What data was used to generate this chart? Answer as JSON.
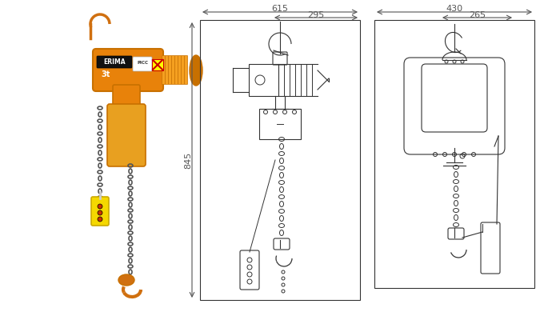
{
  "bg_color": "#ffffff",
  "dim_615": "615",
  "dim_295": "295",
  "dim_845": "845",
  "dim_430": "430",
  "dim_265": "265",
  "line_color": "#333333",
  "dim_line_color": "#555555",
  "orange_main": "#E8820A",
  "orange_dark": "#C87000",
  "orange_light": "#F5A020",
  "yellow_control": "#F5D800",
  "chain_color": "#555555",
  "hook_color": "#D07010",
  "fig_width": 6.95,
  "fig_height": 4.0
}
